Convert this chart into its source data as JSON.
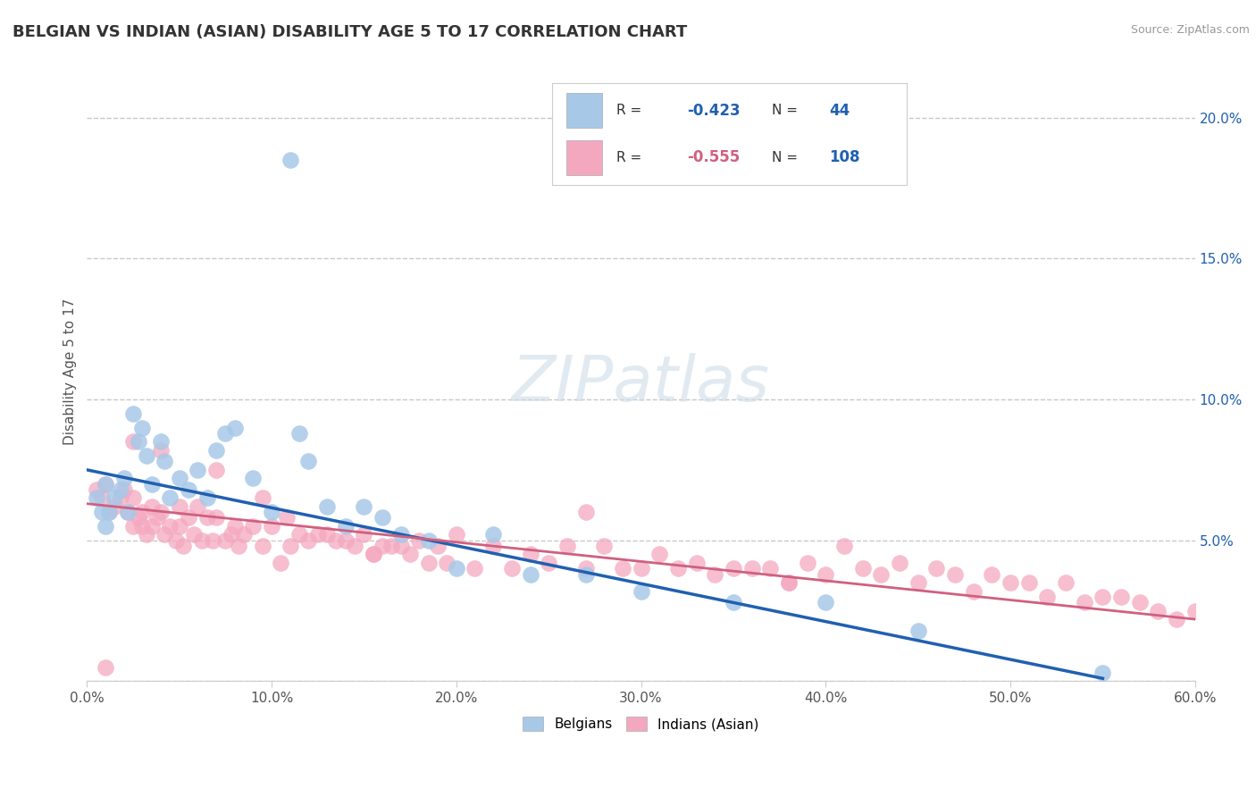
{
  "title": "BELGIAN VS INDIAN (ASIAN) DISABILITY AGE 5 TO 17 CORRELATION CHART",
  "source": "Source: ZipAtlas.com",
  "ylabel": "Disability Age 5 to 17",
  "xlabel": "",
  "xlim": [
    0.0,
    0.6
  ],
  "ylim": [
    0.0,
    0.22
  ],
  "xticks": [
    0.0,
    0.1,
    0.2,
    0.3,
    0.4,
    0.5,
    0.6
  ],
  "yticks": [
    0.0,
    0.05,
    0.1,
    0.15,
    0.2
  ],
  "xticklabels": [
    "0.0%",
    "10.0%",
    "20.0%",
    "30.0%",
    "40.0%",
    "50.0%",
    "60.0%"
  ],
  "yticklabels": [
    "",
    "5.0%",
    "10.0%",
    "15.0%",
    "20.0%"
  ],
  "belgian_color": "#A8C8E8",
  "indian_color": "#F4A8C0",
  "belgian_line_color": "#2060B0",
  "indian_line_color": "#D06080",
  "belgian_R": -0.423,
  "belgian_N": 44,
  "indian_R": -0.555,
  "indian_N": 108,
  "legend_items": [
    "Belgians",
    "Indians (Asian)"
  ],
  "watermark_text": "ZIPatlas",
  "background_color": "#ffffff",
  "grid_color": "#c8c8c8",
  "title_fontsize": 13,
  "belgian_x": [
    0.005,
    0.008,
    0.01,
    0.01,
    0.012,
    0.015,
    0.018,
    0.02,
    0.022,
    0.025,
    0.028,
    0.03,
    0.032,
    0.035,
    0.04,
    0.042,
    0.045,
    0.05,
    0.055,
    0.06,
    0.065,
    0.07,
    0.075,
    0.08,
    0.09,
    0.1,
    0.11,
    0.115,
    0.12,
    0.13,
    0.14,
    0.15,
    0.16,
    0.17,
    0.185,
    0.2,
    0.22,
    0.24,
    0.27,
    0.3,
    0.35,
    0.4,
    0.45,
    0.55
  ],
  "belgian_y": [
    0.065,
    0.06,
    0.07,
    0.055,
    0.06,
    0.065,
    0.068,
    0.072,
    0.06,
    0.095,
    0.085,
    0.09,
    0.08,
    0.07,
    0.085,
    0.078,
    0.065,
    0.072,
    0.068,
    0.075,
    0.065,
    0.082,
    0.088,
    0.09,
    0.072,
    0.06,
    0.185,
    0.088,
    0.078,
    0.062,
    0.055,
    0.062,
    0.058,
    0.052,
    0.05,
    0.04,
    0.052,
    0.038,
    0.038,
    0.032,
    0.028,
    0.028,
    0.018,
    0.003
  ],
  "indian_x": [
    0.005,
    0.008,
    0.01,
    0.012,
    0.015,
    0.018,
    0.02,
    0.022,
    0.025,
    0.025,
    0.028,
    0.03,
    0.03,
    0.032,
    0.035,
    0.035,
    0.038,
    0.04,
    0.042,
    0.045,
    0.048,
    0.05,
    0.05,
    0.052,
    0.055,
    0.058,
    0.06,
    0.062,
    0.065,
    0.068,
    0.07,
    0.075,
    0.078,
    0.08,
    0.082,
    0.085,
    0.09,
    0.095,
    0.1,
    0.105,
    0.108,
    0.11,
    0.115,
    0.12,
    0.125,
    0.13,
    0.135,
    0.14,
    0.145,
    0.15,
    0.155,
    0.16,
    0.165,
    0.17,
    0.175,
    0.18,
    0.185,
    0.19,
    0.195,
    0.2,
    0.21,
    0.22,
    0.23,
    0.24,
    0.25,
    0.26,
    0.27,
    0.28,
    0.29,
    0.3,
    0.31,
    0.32,
    0.33,
    0.34,
    0.35,
    0.36,
    0.37,
    0.38,
    0.39,
    0.4,
    0.41,
    0.42,
    0.43,
    0.44,
    0.45,
    0.46,
    0.47,
    0.48,
    0.49,
    0.5,
    0.51,
    0.52,
    0.53,
    0.54,
    0.55,
    0.56,
    0.57,
    0.58,
    0.59,
    0.6,
    0.07,
    0.04,
    0.095,
    0.025,
    0.155,
    0.27,
    0.38,
    0.01
  ],
  "indian_y": [
    0.068,
    0.065,
    0.07,
    0.06,
    0.062,
    0.065,
    0.068,
    0.06,
    0.065,
    0.055,
    0.058,
    0.06,
    0.055,
    0.052,
    0.062,
    0.055,
    0.058,
    0.06,
    0.052,
    0.055,
    0.05,
    0.062,
    0.055,
    0.048,
    0.058,
    0.052,
    0.062,
    0.05,
    0.058,
    0.05,
    0.058,
    0.05,
    0.052,
    0.055,
    0.048,
    0.052,
    0.055,
    0.048,
    0.055,
    0.042,
    0.058,
    0.048,
    0.052,
    0.05,
    0.052,
    0.052,
    0.05,
    0.05,
    0.048,
    0.052,
    0.045,
    0.048,
    0.048,
    0.048,
    0.045,
    0.05,
    0.042,
    0.048,
    0.042,
    0.052,
    0.04,
    0.048,
    0.04,
    0.045,
    0.042,
    0.048,
    0.04,
    0.048,
    0.04,
    0.04,
    0.045,
    0.04,
    0.042,
    0.038,
    0.04,
    0.04,
    0.04,
    0.035,
    0.042,
    0.038,
    0.048,
    0.04,
    0.038,
    0.042,
    0.035,
    0.04,
    0.038,
    0.032,
    0.038,
    0.035,
    0.035,
    0.03,
    0.035,
    0.028,
    0.03,
    0.03,
    0.028,
    0.025,
    0.022,
    0.025,
    0.075,
    0.082,
    0.065,
    0.085,
    0.045,
    0.06,
    0.035,
    0.005
  ]
}
